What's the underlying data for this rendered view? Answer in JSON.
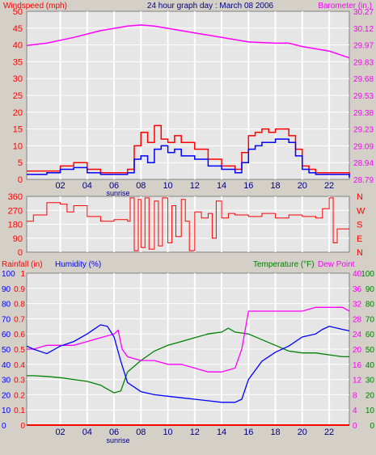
{
  "title": "24 hour graph day : March 08 2006",
  "chart_data": [
    {
      "type": "line",
      "panel": "wind-barometer",
      "left_label": "Windspeed (mph)",
      "right_label": "Barometer (in.)",
      "left_color": "#ff0000",
      "right_color": "#ff00ff",
      "gust_color": "#ff0000",
      "speed_color": "#0000ff",
      "baro_color": "#ff00ff",
      "ylim": [
        0,
        50
      ],
      "yticks": [
        0,
        5,
        10,
        15,
        20,
        25,
        30,
        35,
        40,
        45,
        50
      ],
      "baro_ticks": [
        "28.79",
        "28.94",
        "29.09",
        "29.23",
        "29.38",
        "29.53",
        "29.68",
        "29.83",
        "29.97",
        "30.12",
        "30.27"
      ],
      "baro_ylim": [
        28.79,
        30.27
      ],
      "xlim": [
        -0.5,
        23.5
      ],
      "xticks": [
        "02",
        "04",
        "06",
        "08",
        "10",
        "12",
        "14",
        "16",
        "18",
        "20",
        "22"
      ],
      "xtick_hours": [
        2,
        4,
        6,
        8,
        10,
        12,
        14,
        16,
        18,
        20,
        22
      ],
      "sunrise_label": "sunrise",
      "sunrise_hour": 6.3,
      "series": [
        {
          "x": [
            -0.5,
            1,
            2,
            3,
            4,
            5,
            6,
            7,
            7.5,
            8,
            8.5,
            9,
            9.5,
            10,
            10.5,
            11,
            12,
            13,
            14,
            15,
            15.5,
            16,
            16.5,
            17,
            17.5,
            18,
            18.5,
            19,
            19.5,
            20,
            20.5,
            21,
            22,
            23,
            23.5
          ],
          "values": [
            2.5,
            2.5,
            4,
            5,
            3,
            2,
            2,
            3,
            10,
            14,
            11,
            16,
            12,
            11,
            13,
            11,
            9,
            6,
            4,
            3,
            8,
            13,
            14,
            15,
            14,
            15,
            15,
            13,
            9,
            4,
            3,
            2,
            2,
            2,
            1
          ]
        },
        {
          "x": [
            -0.5,
            1,
            2,
            3,
            4,
            5,
            6,
            7,
            7.5,
            8,
            8.5,
            9,
            9.5,
            10,
            10.5,
            11,
            12,
            13,
            14,
            15,
            15.5,
            16,
            16.5,
            17,
            17.5,
            18,
            18.5,
            19,
            19.5,
            20,
            20.5,
            21,
            22,
            23,
            23.5
          ],
          "values": [
            1.5,
            2,
            3,
            3.5,
            2,
            1.5,
            1.5,
            2,
            6,
            7,
            5,
            9,
            10,
            8,
            9,
            7,
            6,
            4,
            3,
            2,
            5,
            9,
            10,
            11,
            11,
            12,
            12,
            11,
            7,
            3,
            2,
            1.5,
            1.5,
            1.5,
            0.5
          ]
        },
        {
          "x": [
            -0.5,
            1,
            3,
            5,
            7,
            8,
            9,
            10,
            11,
            12,
            14,
            16,
            18,
            19,
            20,
            21,
            22,
            23,
            23.5
          ],
          "values": [
            29.97,
            29.99,
            30.04,
            30.1,
            30.14,
            30.15,
            30.14,
            30.12,
            30.1,
            30.08,
            30.04,
            30.0,
            29.99,
            29.99,
            29.96,
            29.94,
            29.92,
            29.88,
            29.86
          ]
        }
      ]
    },
    {
      "type": "line",
      "panel": "wind-direction",
      "line_color": "#ff0000",
      "ylim": [
        0,
        360
      ],
      "yticks": [
        0,
        90,
        180,
        270,
        360
      ],
      "compass_labels": [
        "N",
        "W",
        "S",
        "E",
        "N"
      ],
      "xlim": [
        -0.5,
        23.5
      ],
      "series": [
        {
          "x": [
            -0.5,
            0,
            1,
            2,
            2.5,
            3,
            4,
            5,
            6,
            7,
            7.2,
            7.5,
            7.8,
            8,
            8.3,
            8.6,
            9,
            9.3,
            9.6,
            10,
            10.3,
            10.6,
            11,
            11.3,
            11.6,
            12,
            12.5,
            13,
            13.3,
            13.6,
            14,
            14.5,
            15,
            16,
            17,
            18,
            19,
            20,
            21,
            21.5,
            22,
            22.3,
            22.6,
            23,
            23.5
          ],
          "values": [
            200,
            240,
            320,
            310,
            260,
            300,
            230,
            200,
            210,
            200,
            350,
            10,
            340,
            30,
            350,
            20,
            330,
            40,
            350,
            60,
            300,
            100,
            340,
            200,
            10,
            260,
            220,
            250,
            90,
            330,
            220,
            250,
            240,
            230,
            250,
            220,
            240,
            230,
            220,
            280,
            350,
            60,
            150,
            150,
            150
          ]
        }
      ]
    },
    {
      "type": "line",
      "panel": "rain-humidity-temperature",
      "left_labels": [
        "Rainfall (in)",
        "Humidity (%)"
      ],
      "right_labels": [
        "Temperature (°F)",
        "Dew Point"
      ],
      "rain_color": "#ff0000",
      "humidity_color": "#0000ff",
      "temp_color": "#008000",
      "dew_color": "#ff00ff",
      "rain_ticks": [
        "0",
        "0.1",
        "0.2",
        "0.3",
        "0.4",
        "0.5",
        "0.6",
        "0.7",
        "0.8",
        "0.9",
        "1"
      ],
      "humidity_ticks": [
        "0",
        "10",
        "20",
        "30",
        "40",
        "50",
        "60",
        "70",
        "80",
        "90",
        "100"
      ],
      "temp_ticks": [
        "0",
        "4",
        "8",
        "12",
        "16",
        "20",
        "24",
        "28",
        "32",
        "36",
        "40"
      ],
      "humidity_right_ticks": [
        "0",
        "10",
        "20",
        "30",
        "40",
        "50",
        "60",
        "70",
        "80",
        "90",
        "100"
      ],
      "ylim": [
        0,
        100
      ],
      "xlim": [
        -0.5,
        23.5
      ],
      "xticks": [
        "02",
        "04",
        "06",
        "08",
        "10",
        "12",
        "14",
        "16",
        "18",
        "20",
        "22"
      ],
      "xtick_hours": [
        2,
        4,
        6,
        8,
        10,
        12,
        14,
        16,
        18,
        20,
        22
      ],
      "sunrise_label": "sunrise",
      "sunrise_hour": 6.3,
      "series": [
        {
          "name": "Humidity (%)",
          "x": [
            -0.5,
            0,
            1,
            2,
            3,
            4,
            4.5,
            5,
            5.5,
            6,
            6.5,
            7,
            8,
            9,
            10,
            11,
            12,
            13,
            14,
            15,
            15.5,
            16,
            17,
            18,
            19,
            20,
            21,
            21.5,
            22,
            23,
            23.5
          ],
          "values": [
            52,
            50,
            47,
            52,
            55,
            60,
            63,
            66,
            65,
            58,
            42,
            28,
            22,
            20,
            19,
            18,
            17,
            16,
            15,
            15,
            17,
            30,
            42,
            48,
            52,
            58,
            60,
            63,
            65,
            63,
            62
          ]
        },
        {
          "name": "Temperature (°F)",
          "x": [
            -0.5,
            0,
            1,
            2,
            3,
            4,
            5,
            5.5,
            6,
            6.5,
            7,
            8,
            9,
            10,
            11,
            12,
            13,
            14,
            14.5,
            15,
            16,
            17,
            18,
            19,
            20,
            21,
            22,
            23,
            23.5
          ],
          "values": [
            13,
            13,
            12.8,
            12.5,
            12,
            11.5,
            10.5,
            9.5,
            8.5,
            9,
            14,
            17,
            19.5,
            21,
            22,
            23,
            24,
            24.5,
            25.5,
            24.5,
            24,
            22.5,
            21,
            19.5,
            19,
            19,
            18.5,
            18,
            18
          ]
        },
        {
          "name": "Dew Point",
          "x": [
            -0.5,
            0,
            1,
            2,
            3,
            4,
            5,
            6,
            6.3,
            6.6,
            7,
            8,
            9,
            10,
            11,
            12,
            13,
            14,
            15,
            15.5,
            16,
            17,
            18,
            19,
            20,
            21,
            22,
            23,
            23.5
          ],
          "values": [
            20,
            20,
            21,
            21,
            21,
            22,
            23,
            24,
            25,
            20,
            18,
            17,
            17,
            16,
            16,
            15,
            14,
            14,
            15,
            20,
            30,
            30,
            30,
            30,
            30,
            31,
            31,
            31,
            30
          ]
        },
        {
          "x": [
            -0.5,
            23.5
          ],
          "values": [
            0,
            0
          ]
        }
      ]
    }
  ]
}
